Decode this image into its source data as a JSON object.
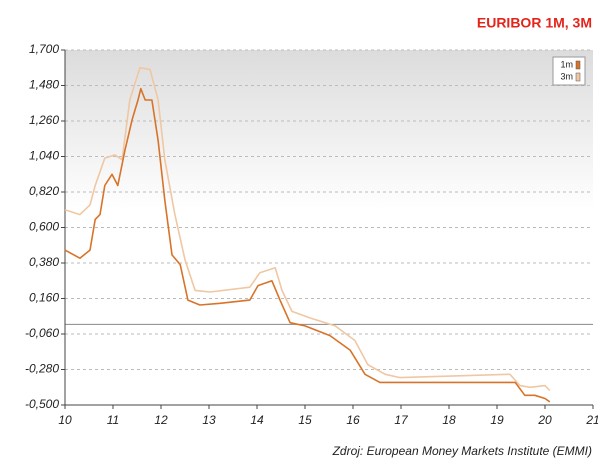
{
  "chart_data": {
    "type": "line",
    "title": "EURIBOR 1M, 3M",
    "source": "Zdroj: European Money Markets Institute (EMMI)",
    "xlim": [
      10,
      21
    ],
    "xticks": [
      10,
      11,
      12,
      13,
      14,
      15,
      16,
      17,
      18,
      19,
      20,
      21
    ],
    "ylim": [
      -0.5,
      1.7
    ],
    "yticks": [
      {
        "value": 1.7,
        "label": "1,700"
      },
      {
        "value": 1.48,
        "label": "1,480"
      },
      {
        "value": 1.26,
        "label": "1,260"
      },
      {
        "value": 1.04,
        "label": "1,040"
      },
      {
        "value": 0.82,
        "label": "0,820"
      },
      {
        "value": 0.6,
        "label": "0,600"
      },
      {
        "value": 0.38,
        "label": "0,380"
      },
      {
        "value": 0.16,
        "label": "0,160"
      },
      {
        "value": -0.06,
        "label": "-0,060"
      },
      {
        "value": -0.28,
        "label": "-0,280"
      },
      {
        "value": -0.5,
        "label": "-0,500"
      }
    ],
    "grid": true,
    "legend": "upper right",
    "series": [
      {
        "name": "1m",
        "color": "#d8732a",
        "x": [
          10.0,
          10.31,
          10.52,
          10.63,
          10.73,
          10.83,
          10.98,
          11.1,
          11.25,
          11.4,
          11.52,
          11.58,
          11.67,
          11.81,
          11.94,
          12.08,
          12.23,
          12.4,
          12.56,
          12.81,
          13.23,
          13.85,
          14.02,
          14.31,
          14.48,
          14.69,
          15.0,
          15.52,
          15.94,
          16.25,
          16.56,
          16.98,
          19.06,
          19.38,
          19.58,
          19.79,
          20.0,
          20.1
        ],
        "values": [
          0.46,
          0.41,
          0.46,
          0.65,
          0.68,
          0.86,
          0.93,
          0.86,
          1.08,
          1.27,
          1.39,
          1.46,
          1.39,
          1.39,
          1.14,
          0.77,
          0.43,
          0.37,
          0.15,
          0.12,
          0.13,
          0.15,
          0.24,
          0.27,
          0.15,
          0.01,
          -0.01,
          -0.07,
          -0.16,
          -0.31,
          -0.36,
          -0.36,
          -0.36,
          -0.36,
          -0.44,
          -0.44,
          -0.46,
          -0.48
        ]
      },
      {
        "name": "3m",
        "color": "#f0c7a3",
        "x": [
          10.0,
          10.31,
          10.52,
          10.63,
          10.83,
          11.04,
          11.19,
          11.35,
          11.56,
          11.77,
          11.94,
          12.08,
          12.29,
          12.5,
          12.71,
          13.02,
          13.85,
          14.06,
          14.38,
          14.52,
          14.73,
          15.1,
          15.63,
          16.04,
          16.31,
          16.67,
          16.98,
          19.27,
          19.48,
          19.69,
          20.0,
          20.1
        ],
        "values": [
          0.71,
          0.68,
          0.74,
          0.86,
          1.03,
          1.05,
          1.02,
          1.39,
          1.59,
          1.58,
          1.39,
          1.02,
          0.68,
          0.4,
          0.21,
          0.2,
          0.23,
          0.32,
          0.35,
          0.21,
          0.08,
          0.04,
          -0.01,
          -0.1,
          -0.25,
          -0.31,
          -0.33,
          -0.31,
          -0.38,
          -0.39,
          -0.38,
          -0.41
        ]
      }
    ]
  }
}
